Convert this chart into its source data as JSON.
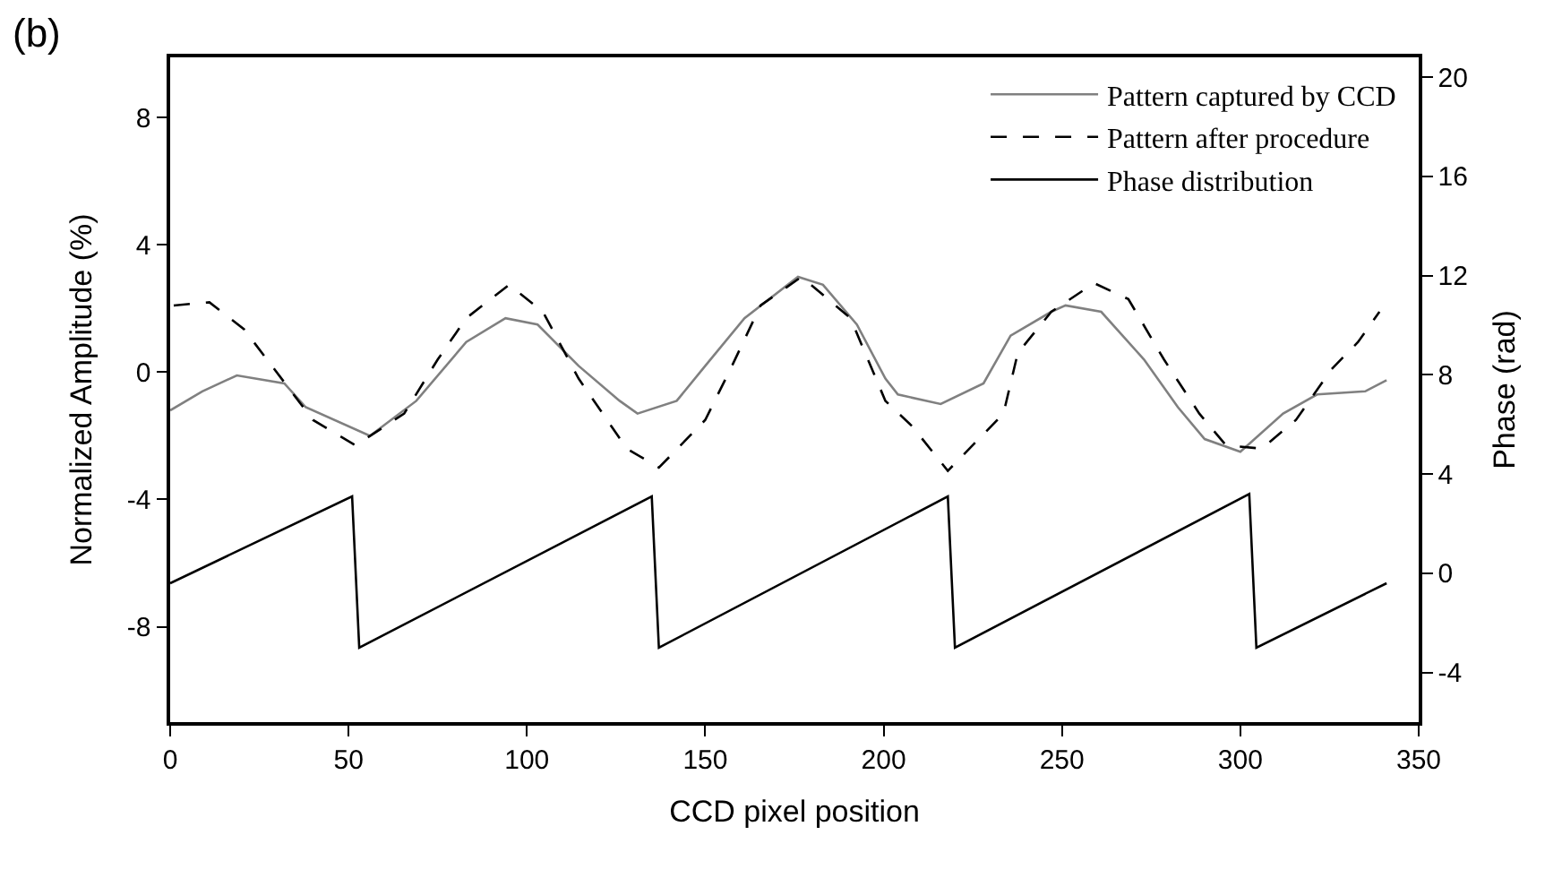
{
  "chart_data": {
    "type": "line",
    "xlabel": "CCD pixel position",
    "ylabel": "Normalized Amplitude (%)",
    "y2label": "Phase (rad)",
    "annotations": [
      "(b)"
    ],
    "xlim": [
      0,
      350
    ],
    "xticks": [
      0,
      50,
      100,
      150,
      200,
      250,
      300,
      350
    ],
    "ylim": [
      -11,
      9.9
    ],
    "yticks": [
      -8,
      -4,
      0,
      4,
      8
    ],
    "y2lim": [
      -6,
      20.8
    ],
    "y2ticks": [
      -4,
      0,
      4,
      8,
      12,
      16,
      20
    ],
    "legend": "top right",
    "series": [
      {
        "name": "Pattern captured by CCD",
        "color": "#808080",
        "line_style": "solid",
        "x": [
          0,
          9,
          18.7,
          32,
          38,
          56,
          69,
          83,
          94,
          103,
          114.5,
          126,
          131,
          142,
          150,
          161,
          176,
          183,
          192.5,
          200.5,
          204,
          216,
          228,
          235.6,
          247,
          251,
          261,
          273,
          282.5,
          290,
          300,
          312,
          321.5,
          335,
          341
        ],
        "values": [
          -1.2,
          -0.6,
          -0.1,
          -0.35,
          -1.1,
          -2.0,
          -0.9,
          0.95,
          1.7,
          1.5,
          0.2,
          -0.9,
          -1.3,
          -0.9,
          0.2,
          1.7,
          3.0,
          2.75,
          1.5,
          -0.2,
          -0.7,
          -1.0,
          -0.35,
          1.15,
          1.9,
          2.1,
          1.9,
          0.4,
          -1.1,
          -2.1,
          -2.5,
          -1.3,
          -0.7,
          -0.6,
          -0.25
        ]
      },
      {
        "name": "Pattern after procedure",
        "color": "#000000",
        "line_style": "dashed",
        "x": [
          1,
          11,
          20.7,
          28.5,
          40,
          52,
          65.6,
          75,
          83,
          95,
          104.5,
          114.5,
          128,
          137,
          150,
          157.5,
          165.5,
          177,
          190.7,
          200.5,
          208,
          218,
          233.6,
          237.6,
          247,
          259,
          268.6,
          278.6,
          288.5,
          296,
          306,
          315.6,
          325.6,
          333,
          339
        ],
        "values": [
          2.1,
          2.2,
          1.35,
          0.2,
          -1.5,
          -2.3,
          -1.3,
          0.4,
          1.7,
          2.75,
          1.9,
          -0.2,
          -2.4,
          -3.0,
          -1.5,
          0.2,
          2.1,
          3.0,
          1.7,
          -0.9,
          -1.7,
          -3.1,
          -1.3,
          0.6,
          1.9,
          2.8,
          2.3,
          0.4,
          -1.3,
          -2.3,
          -2.4,
          -1.5,
          0.1,
          0.95,
          1.9
        ]
      },
      {
        "name": "Phase distribution",
        "color": "#000000",
        "line_style": "solid",
        "axis": "y2",
        "x": [
          0,
          51,
          53,
          135,
          137,
          218,
          220,
          302.5,
          304.5,
          341
        ],
        "values": [
          -0.4,
          3.1,
          -3.0,
          3.1,
          -3.0,
          3.1,
          -3.0,
          3.2,
          -3.0,
          -0.4
        ]
      }
    ]
  }
}
